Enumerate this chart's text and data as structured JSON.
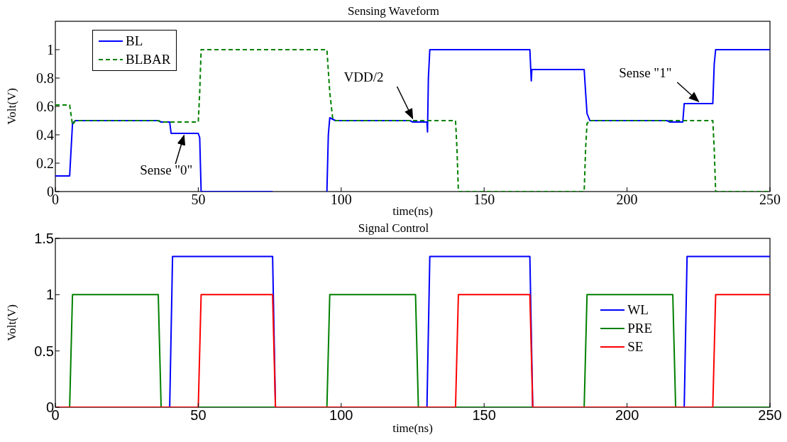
{
  "chart_data": [
    {
      "type": "line",
      "title": "Sensing Waveform",
      "xlabel": "time(ns)",
      "ylabel": "Volt(V)",
      "xlim": [
        0,
        250
      ],
      "xticks": [
        0,
        50,
        100,
        150,
        200,
        250
      ],
      "ylim": [
        0,
        1.2
      ],
      "yticks": [
        0,
        0.2,
        0.4,
        0.6,
        0.8,
        1
      ],
      "grid": false,
      "legend": "top left",
      "marker": "none",
      "series": [
        {
          "name": "BL",
          "color": "#0000ff",
          "line_style": "solid",
          "x": [
            0,
            5,
            6,
            7,
            36,
            37,
            40,
            40.5,
            50,
            50.5,
            51,
            76,
            77,
            95,
            95.5,
            96,
            97,
            98,
            124,
            125,
            130,
            130.2,
            130.5,
            131,
            166,
            166.5,
            166.7,
            185,
            185.5,
            186,
            187,
            214,
            215,
            219.5,
            220,
            230,
            230.5,
            231,
            250
          ],
          "values": [
            0.11,
            0.11,
            0.48,
            0.5,
            0.5,
            0.49,
            0.49,
            0.41,
            0.41,
            0.38,
            0,
            0,
            null,
            0,
            0.4,
            0.52,
            0.51,
            0.5,
            0.5,
            0.49,
            0.49,
            0.42,
            0.8,
            1,
            1,
            0.78,
            0.86,
            0.86,
            0.7,
            0.55,
            0.5,
            0.5,
            0.49,
            0.49,
            0.62,
            0.62,
            0.9,
            1,
            1
          ]
        },
        {
          "name": "BLBAR",
          "color": "#008000",
          "line_style": "dashed",
          "x": [
            0,
            5,
            6,
            7,
            36,
            37,
            50,
            50.5,
            51,
            95,
            96,
            97,
            98,
            124,
            130,
            140,
            140.5,
            141,
            185,
            185.5,
            186,
            187,
            230,
            230.5,
            231,
            250
          ],
          "values": [
            0.61,
            0.61,
            0.47,
            0.5,
            0.5,
            0.49,
            0.49,
            0.7,
            1,
            1,
            0.7,
            0.52,
            0.5,
            0.5,
            0.5,
            0.5,
            0.3,
            0,
            0,
            0.3,
            0.48,
            0.5,
            0.5,
            0.3,
            0,
            0
          ]
        }
      ],
      "annotations": [
        {
          "text": "Sense \"0\"",
          "x": 45,
          "y": 0.41
        },
        {
          "text": "VDD/2",
          "x": 125,
          "y": 0.5
        },
        {
          "text": "Sense \"1\"",
          "x": 225,
          "y": 0.62
        }
      ]
    },
    {
      "type": "line",
      "title": "Signal Control",
      "xlabel": "time(ns)",
      "ylabel": "Volt(V)",
      "xlim": [
        0,
        250
      ],
      "xticks": [
        0,
        50,
        100,
        150,
        200,
        250
      ],
      "ylim": [
        0,
        1.5
      ],
      "yticks": [
        0,
        0.5,
        1,
        1.5
      ],
      "grid": false,
      "legend": "right",
      "marker": "none",
      "series": [
        {
          "name": "WL",
          "color": "#0000ff",
          "line_style": "solid",
          "x": [
            0,
            40,
            41,
            76,
            77,
            130,
            131,
            166,
            167,
            220,
            221,
            250
          ],
          "values": [
            0,
            0,
            1.34,
            1.34,
            0,
            0,
            1.34,
            1.34,
            0,
            0,
            1.34,
            1.34
          ]
        },
        {
          "name": "PRE",
          "color": "#008000",
          "line_style": "solid",
          "x": [
            0,
            5,
            6,
            36,
            37,
            95,
            96,
            126,
            127,
            185,
            186,
            216,
            217,
            250
          ],
          "values": [
            0,
            0,
            1,
            1,
            0,
            0,
            1,
            1,
            0,
            0,
            1,
            1,
            0,
            0
          ]
        },
        {
          "name": "SE",
          "color": "#ff0000",
          "line_style": "solid",
          "x": [
            0,
            50,
            51,
            76,
            77,
            140,
            141,
            166,
            167,
            230,
            231,
            250
          ],
          "values": [
            0,
            0,
            1,
            1,
            0,
            0,
            1,
            1,
            0,
            0,
            1,
            1
          ]
        }
      ]
    }
  ]
}
